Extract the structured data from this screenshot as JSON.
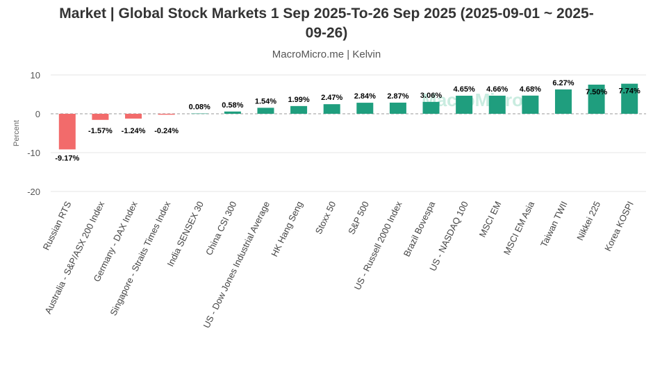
{
  "chart_data": {
    "type": "bar",
    "title": "Market | Global Stock Markets 1 Sep 2025-To-26 Sep 2025 (2025-09-01 ~ 2025-09-26)",
    "title_lines": [
      "Market | Global Stock Markets 1 Sep 2025-To-26 Sep 2025 (2025-09-01 ~ 2025-",
      "09-26)"
    ],
    "subtitle": "MacroMicro.me | Kelvin",
    "watermark": "MacroMicro",
    "ylabel": "Percent",
    "xlabel": "",
    "ylim": [
      -20,
      10
    ],
    "yticks": [
      10,
      0,
      -10,
      -20
    ],
    "grid": true,
    "positive_color": "#1f9e7e",
    "negative_color": "#f26b6b",
    "categories": [
      "Russian RTS",
      "Australia - S&P/ASX 200 Index",
      "Germany - DAX Index",
      "Singapore - Straits Times Index",
      "India SENSEX 30",
      "China CSI 300",
      "US - Dow Jones Industrial Average",
      "HK Hang Seng",
      "Stoxx 50",
      "S&P 500",
      "US - Russell 2000 Index",
      "Brazil Bovespa",
      "US - NASDAQ 100",
      "MSCI EM",
      "MSCI EM Asia",
      "Taiwan TWII",
      "Nikkei 225",
      "Korea KOSPI"
    ],
    "values": [
      -9.17,
      -1.57,
      -1.24,
      -0.24,
      0.08,
      0.58,
      1.54,
      1.99,
      2.47,
      2.84,
      2.87,
      3.06,
      4.65,
      4.66,
      4.68,
      6.27,
      7.5,
      7.74
    ],
    "data_labels": [
      "-9.17%",
      "-1.57%",
      "-1.24%",
      "-0.24%",
      "0.08%",
      "0.58%",
      "1.54%",
      "1.99%",
      "2.47%",
      "2.84%",
      "2.87%",
      "3.06%",
      "4.65%",
      "4.66%",
      "4.68%",
      "6.27%",
      "7.50%",
      "7.74%"
    ]
  }
}
